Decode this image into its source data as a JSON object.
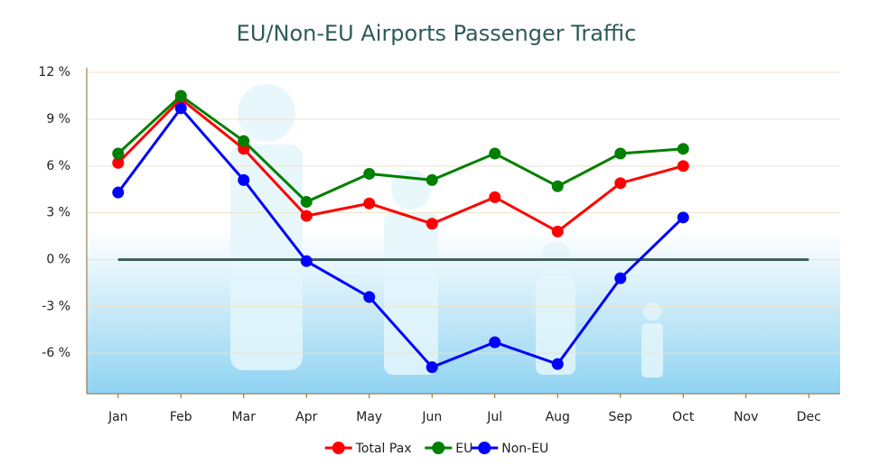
{
  "chart_data": {
    "type": "line",
    "title": "EU/Non-EU Airports Passenger Traffic",
    "categories": [
      "Jan",
      "Feb",
      "Mar",
      "Apr",
      "May",
      "Jun",
      "Jul",
      "Aug",
      "Sep",
      "Oct",
      "Nov",
      "Dec"
    ],
    "series": [
      {
        "name": "Total Pax",
        "color": "#ff0000",
        "values": [
          6.2,
          10.3,
          7.1,
          2.8,
          3.6,
          2.3,
          4.0,
          1.8,
          4.9,
          6.0,
          null,
          null
        ]
      },
      {
        "name": "EU",
        "color": "#008000",
        "values": [
          6.8,
          10.5,
          7.6,
          3.7,
          5.5,
          5.1,
          6.8,
          4.7,
          6.8,
          7.1,
          null,
          null
        ]
      },
      {
        "name": "Non-EU",
        "color": "#0000ff",
        "values": [
          4.3,
          9.7,
          5.1,
          -0.1,
          -2.4,
          -6.9,
          -5.3,
          -6.7,
          -1.2,
          2.7,
          null,
          null
        ]
      }
    ],
    "ylim": [
      -8.6,
      12.3
    ],
    "yticks": [
      {
        "value": -6,
        "label": "-6 %"
      },
      {
        "value": -3,
        "label": "-3 %"
      },
      {
        "value": 0,
        "label": "0 %"
      },
      {
        "value": 3,
        "label": "3 %"
      },
      {
        "value": 6,
        "label": "6 %"
      },
      {
        "value": 9,
        "label": "9 %"
      },
      {
        "value": 12,
        "label": "12 %"
      }
    ],
    "grid": true,
    "legend": "bottom"
  }
}
